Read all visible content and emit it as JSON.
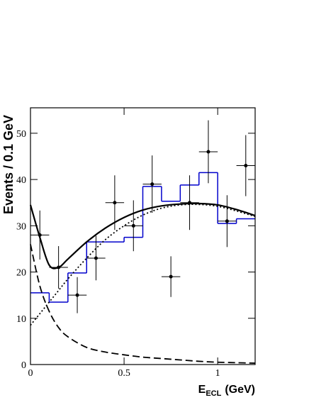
{
  "chart_data": {
    "type": "fit",
    "y_label": "Events / 0.1 GeV",
    "x_label": {
      "main": "E",
      "sub": "ECL",
      "unit": "(GeV)"
    },
    "xlim": [
      0,
      1.2
    ],
    "ylim": [
      0,
      55.5
    ],
    "xticks": [
      0,
      0.5,
      1
    ],
    "yticks": [
      0,
      10,
      20,
      30,
      40,
      50
    ],
    "points": {
      "x": [
        0.05,
        0.15,
        0.25,
        0.35,
        0.45,
        0.55,
        0.65,
        0.75,
        0.85,
        0.95,
        1.05,
        1.15
      ],
      "values": [
        28,
        21,
        15,
        23,
        35,
        30,
        39,
        19,
        35,
        46,
        31,
        43
      ],
      "errors": [
        5.3,
        4.6,
        3.9,
        4.8,
        5.9,
        5.5,
        6.2,
        4.4,
        5.9,
        6.8,
        5.6,
        6.6
      ],
      "xerr": 0.05,
      "color": "#000000"
    },
    "histogram": {
      "bins": [
        0,
        0.1,
        0.2,
        0.3,
        0.4,
        0.5,
        0.6,
        0.7,
        0.8,
        0.9,
        1.0,
        1.1,
        1.2
      ],
      "counts": [
        15.5,
        13.5,
        19.8,
        26.5,
        26.5,
        27.5,
        38.5,
        35.3,
        38.8,
        41.5,
        30.5,
        31.5
      ],
      "color": "#0000cc"
    },
    "curve_x": [
      0,
      0.05,
      0.1,
      0.15,
      0.2,
      0.3,
      0.4,
      0.5,
      0.6,
      0.7,
      0.8,
      0.9,
      1.0,
      1.1,
      1.2
    ],
    "curves": [
      {
        "style": "solid",
        "color": "#000000",
        "values": [
          34.5,
          27.5,
          21.5,
          21,
          22.8,
          26.5,
          29.5,
          31.8,
          33.4,
          34.3,
          34.7,
          34.8,
          34.5,
          33.5,
          32.2
        ]
      },
      {
        "style": "dotted",
        "color": "#000000",
        "values": [
          8.5,
          11,
          13.5,
          16,
          18.5,
          23,
          27,
          30,
          32.3,
          33.8,
          34.5,
          34.6,
          34.2,
          33.2,
          32
        ]
      },
      {
        "style": "dashed",
        "color": "#000000",
        "values": [
          26,
          17,
          11.5,
          8,
          6,
          3.7,
          2.7,
          2.1,
          1.6,
          1.3,
          1,
          0.7,
          0.5,
          0.4,
          0.3
        ]
      }
    ]
  }
}
